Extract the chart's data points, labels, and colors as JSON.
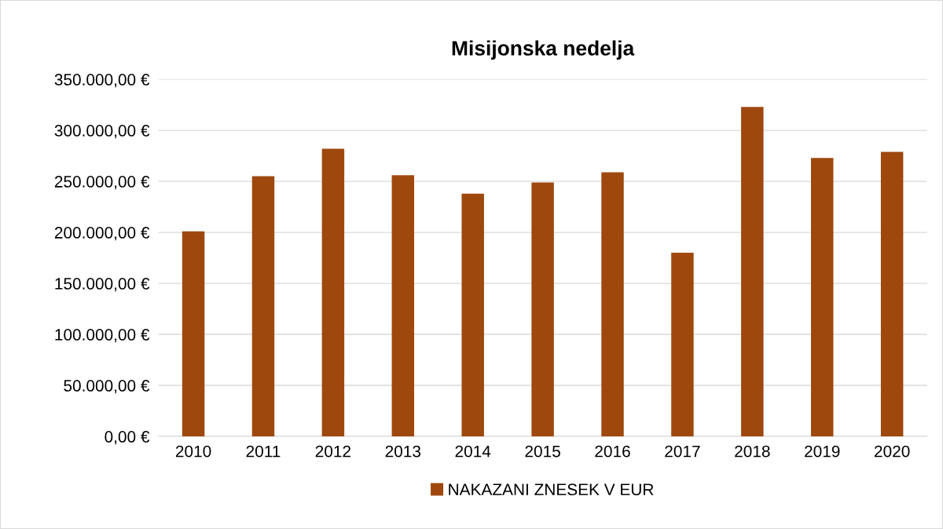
{
  "chart_data": {
    "type": "bar",
    "title": "Misijonska nedelja",
    "categories": [
      "2010",
      "2011",
      "2012",
      "2013",
      "2014",
      "2015",
      "2016",
      "2017",
      "2018",
      "2019",
      "2020"
    ],
    "series": [
      {
        "name": "NAKAZANI ZNESEK V EUR",
        "color": "#9e480e",
        "values": [
          201000,
          255000,
          282000,
          256000,
          238000,
          249000,
          259000,
          180000,
          323000,
          273000,
          279000
        ]
      }
    ],
    "ylim": [
      0,
      350000
    ],
    "yticks": [
      {
        "value": 0,
        "label": "0,00 €"
      },
      {
        "value": 50000,
        "label": "50.000,00 €"
      },
      {
        "value": 100000,
        "label": "100.000,00 €"
      },
      {
        "value": 150000,
        "label": "150.000,00 €"
      },
      {
        "value": 200000,
        "label": "200.000,00 €"
      },
      {
        "value": 250000,
        "label": "250.000,00 €"
      },
      {
        "value": 300000,
        "label": "300.000,00 €"
      },
      {
        "value": 350000,
        "label": "350.000,00 €"
      }
    ],
    "grid": "y",
    "legend": "bottom"
  }
}
